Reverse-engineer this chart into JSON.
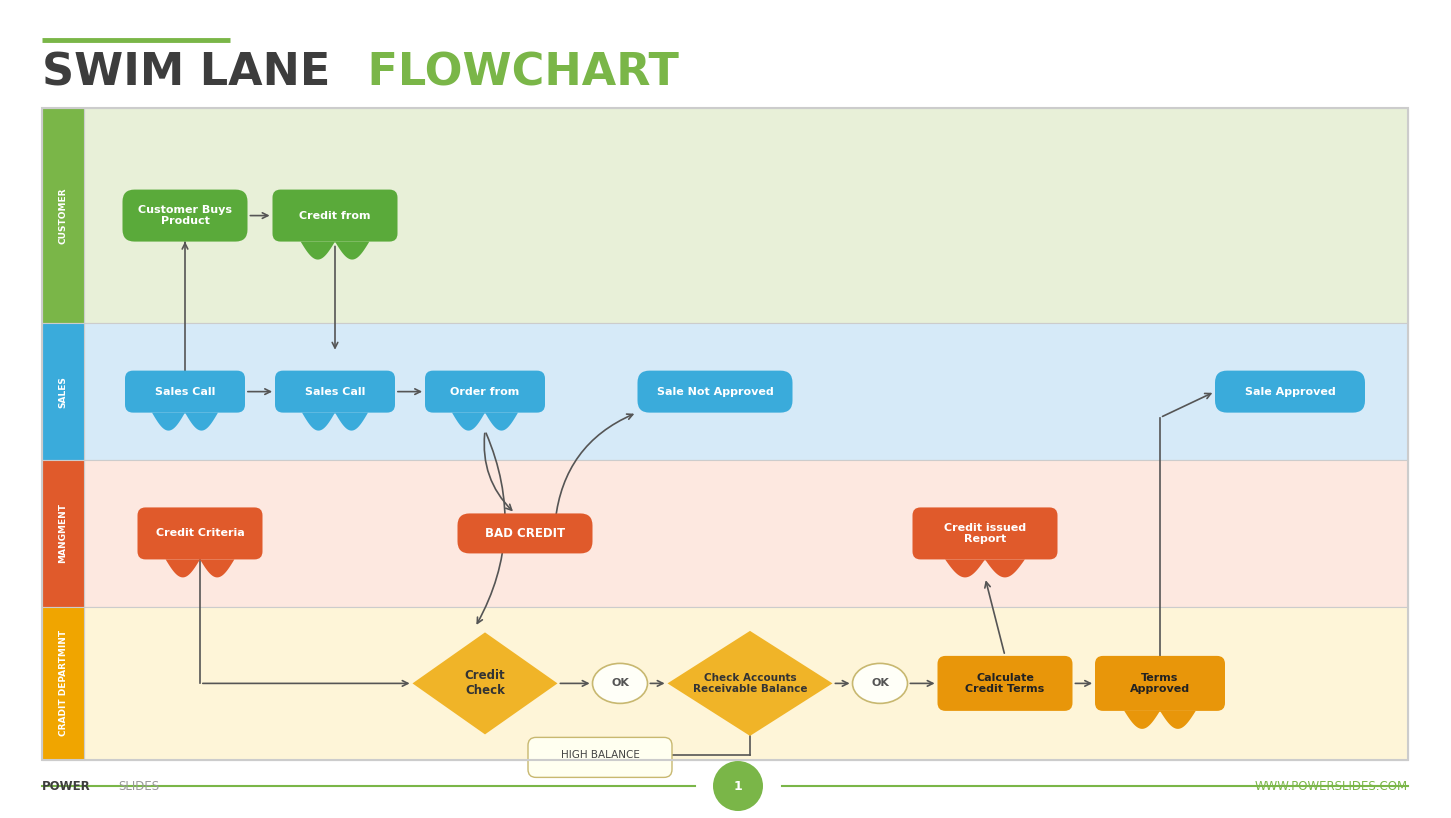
{
  "title_swim": "SWIM LANE",
  "title_flow": " FLOWCHART",
  "title_color_swim": "#3d3d3d",
  "title_color_flow": "#7ab648",
  "title_fontsize": 32,
  "accent_line_color": "#7ab648",
  "lanes": [
    {
      "label": "CUSTOMER",
      "color": "#e8f0d8",
      "tab_color": "#7ab648"
    },
    {
      "label": "SALES",
      "color": "#d6eaf8",
      "tab_color": "#3aabdb"
    },
    {
      "label": "MANGMENT",
      "color": "#fde8e0",
      "tab_color": "#e05a2b"
    },
    {
      "label": "CRADIT DEPARTMINT",
      "color": "#fef5d8",
      "tab_color": "#f0a500"
    }
  ],
  "bg_color": "#ffffff",
  "border_color": "#cccccc",
  "arrow_color": "#555555",
  "green_box": "#5aaa3a",
  "blue_box": "#3aabdb",
  "red_box": "#e05a2b",
  "gold_box": "#f0b428",
  "gold_dark_box": "#e8960a",
  "ok_fill": "#fffff8",
  "ok_edge": "#c8b870",
  "highbal_fill": "#fffff0",
  "highbal_edge": "#c8b870",
  "footer_bold_color": "#3d3d3d",
  "footer_normal_color": "#999999",
  "footer_green": "#7ab648",
  "page_num": "1"
}
